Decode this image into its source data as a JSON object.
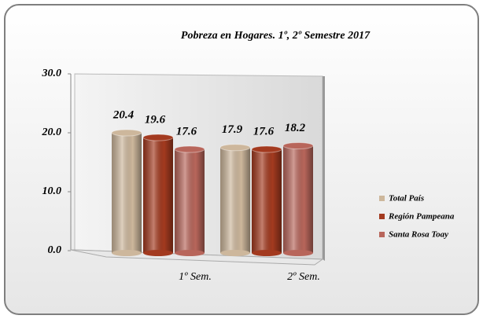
{
  "chart_data": {
    "type": "bar3d",
    "title": "Pobreza en Hogares. 1º, 2º Semestre 2017",
    "categories": [
      "1º Sem.",
      "2º Sem."
    ],
    "series": [
      {
        "name": "Total País",
        "color": "#cdb79c",
        "values": [
          20.4,
          17.9
        ]
      },
      {
        "name": "Región Pampeana",
        "color": "#a33a1f",
        "values": [
          19.6,
          17.6
        ]
      },
      {
        "name": "Santa Rosa  Toay",
        "color": "#b8665b",
        "values": [
          17.6,
          18.2
        ]
      }
    ],
    "ylim": [
      0,
      30
    ],
    "yticks": [
      {
        "value": 0,
        "label": "0.0"
      },
      {
        "value": 10,
        "label": "10.0"
      },
      {
        "value": 20,
        "label": "20.0"
      },
      {
        "value": 30,
        "label": "30.0"
      }
    ],
    "legend": "right"
  }
}
